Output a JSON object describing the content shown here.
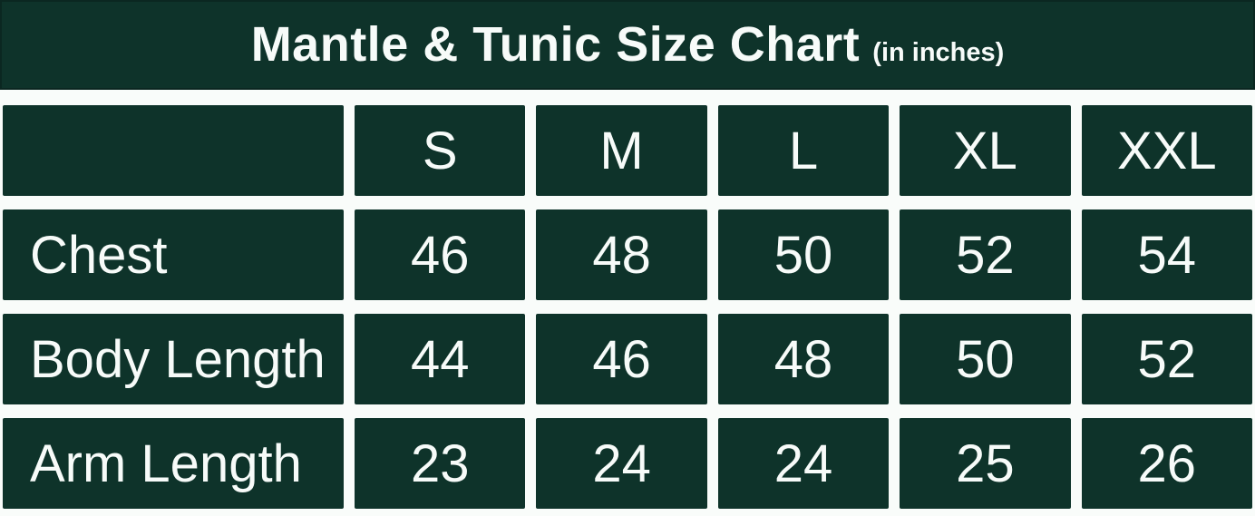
{
  "title": {
    "main": "Mantle & Tunic Size Chart",
    "suffix": "(in inches)"
  },
  "table": {
    "sizes": [
      "S",
      "M",
      "L",
      "XL",
      "XXL"
    ],
    "rows": [
      {
        "label": "Chest",
        "values": [
          "46",
          "48",
          "50",
          "52",
          "54"
        ]
      },
      {
        "label": "Body Length",
        "values": [
          "44",
          "46",
          "48",
          "50",
          "52"
        ]
      },
      {
        "label": "Arm Length",
        "values": [
          "23",
          "24",
          "24",
          "25",
          "26"
        ]
      }
    ]
  },
  "chart_data": {
    "type": "table",
    "title": "Mantle & Tunic Size Chart (in inches)",
    "units": "inches",
    "columns": [
      "",
      "S",
      "M",
      "L",
      "XL",
      "XXL"
    ],
    "rows": [
      [
        "Chest",
        46,
        48,
        50,
        52,
        54
      ],
      [
        "Body Length",
        44,
        46,
        48,
        50,
        52
      ],
      [
        "Arm Length",
        23,
        24,
        24,
        25,
        26
      ]
    ]
  },
  "colors": {
    "cell_green": "#0e332a",
    "title_border": "#0b2721",
    "page_background": "#f9fcfa",
    "text_white": "#f7fbf9"
  }
}
